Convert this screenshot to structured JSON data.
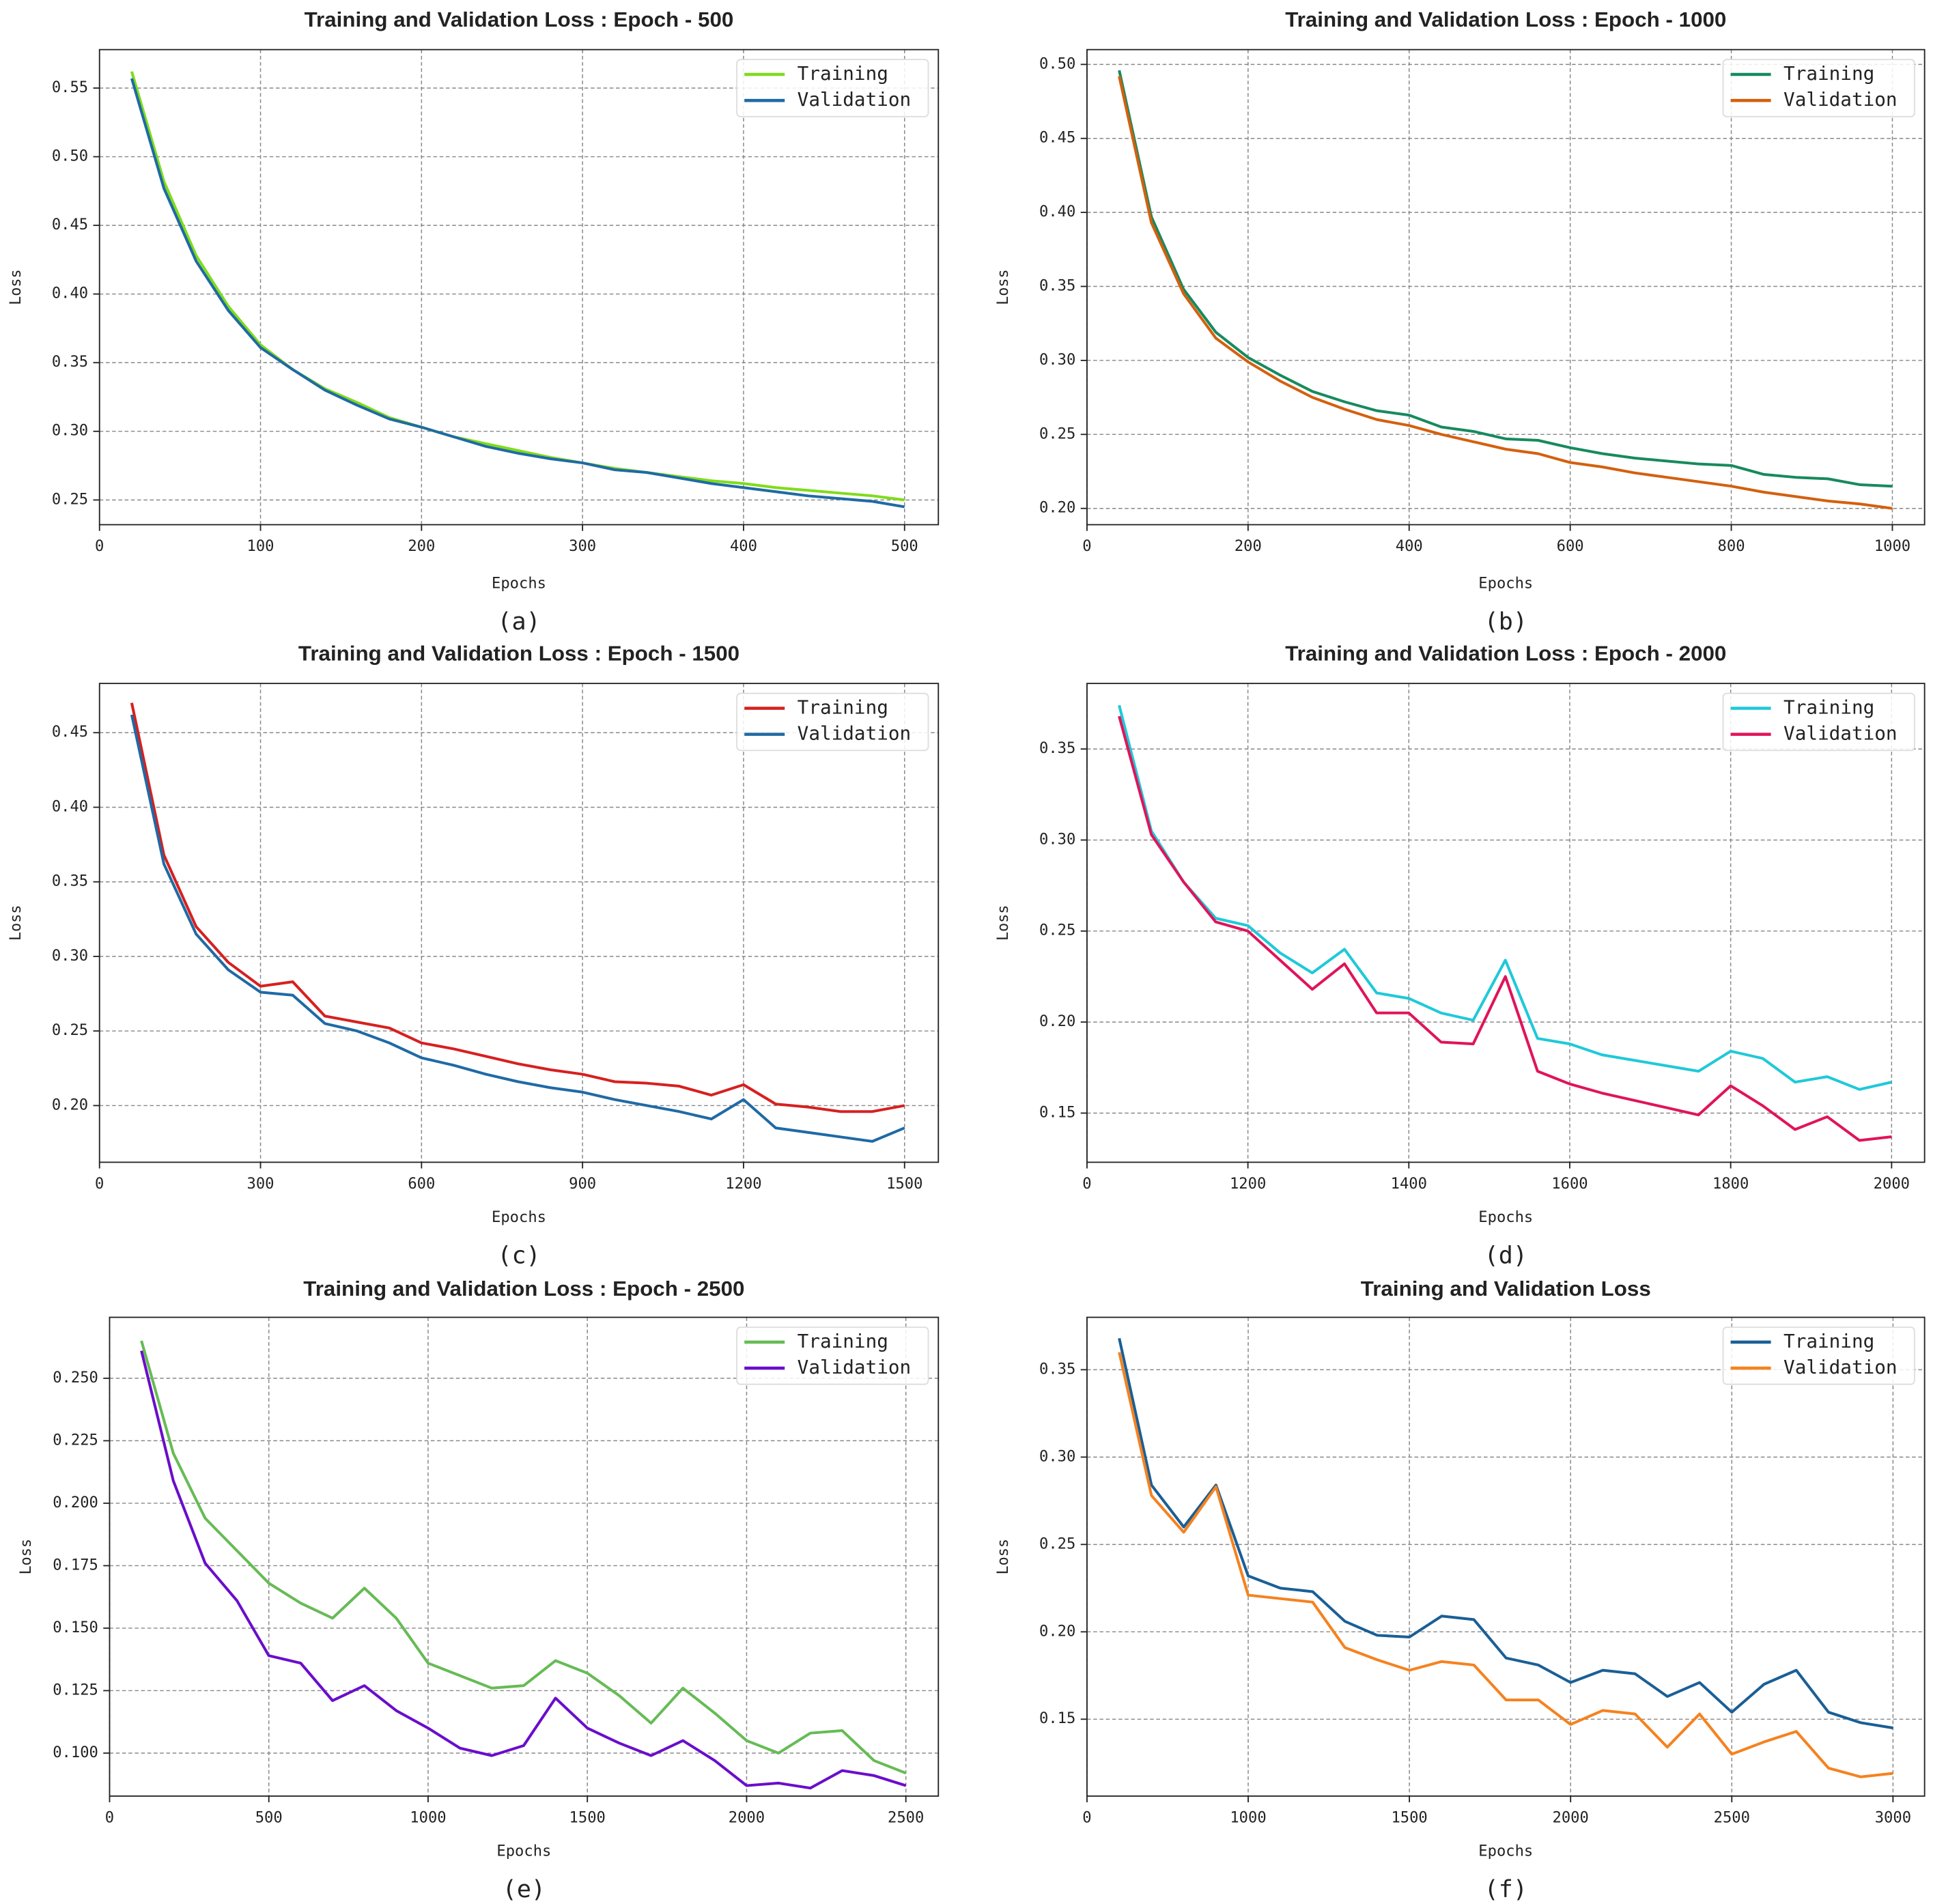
{
  "chart_data": [
    {
      "type": "line",
      "title": "Training and Validation Loss : Epoch - 500",
      "xlabel": "Epochs",
      "ylabel": "Loss",
      "caption": "(a)",
      "x": [
        20,
        40,
        60,
        80,
        100,
        120,
        140,
        160,
        180,
        200,
        220,
        240,
        260,
        280,
        300,
        320,
        340,
        360,
        380,
        400,
        420,
        440,
        460,
        480,
        500
      ],
      "series": [
        {
          "name": "Training",
          "color": "#7fdc1a",
          "values": [
            0.562,
            0.482,
            0.428,
            0.391,
            0.363,
            0.345,
            0.331,
            0.321,
            0.31,
            0.303,
            0.296,
            0.291,
            0.286,
            0.281,
            0.277,
            0.273,
            0.27,
            0.267,
            0.264,
            0.262,
            0.259,
            0.257,
            0.255,
            0.253,
            0.25
          ]
        },
        {
          "name": "Validation",
          "color": "#1f6aa5",
          "values": [
            0.557,
            0.477,
            0.424,
            0.388,
            0.361,
            0.345,
            0.33,
            0.319,
            0.309,
            0.303,
            0.296,
            0.289,
            0.284,
            0.28,
            0.277,
            0.272,
            0.27,
            0.266,
            0.262,
            0.259,
            0.256,
            0.253,
            0.251,
            0.249,
            0.245
          ]
        }
      ],
      "xlim": [
        0,
        521
      ],
      "ylim": [
        0.232,
        0.578
      ],
      "xticks": [
        0,
        100,
        200,
        300,
        400,
        500
      ],
      "yticks": [
        0.25,
        {
          "value": 0.3,
          "label": "0.30"
        },
        0.35,
        {
          "value": 0.4,
          "label": "0.40"
        },
        0.45,
        {
          "value": 0.5,
          "label": "0.50"
        },
        0.55
      ],
      "grid": true,
      "legend": "upper right"
    },
    {
      "type": "line",
      "title": "Training and Validation Loss : Epoch - 1000",
      "xlabel": "Epochs",
      "ylabel": "Loss",
      "caption": "(b)",
      "x": [
        40,
        80,
        120,
        160,
        200,
        240,
        280,
        320,
        360,
        400,
        440,
        480,
        520,
        560,
        600,
        640,
        680,
        720,
        760,
        800,
        840,
        880,
        920,
        960,
        1000
      ],
      "series": [
        {
          "name": "Training",
          "color": "#178a5e",
          "values": [
            0.496,
            0.397,
            0.348,
            0.319,
            0.302,
            0.29,
            0.279,
            0.272,
            0.266,
            0.263,
            0.255,
            0.252,
            0.247,
            0.246,
            0.241,
            0.237,
            0.234,
            0.232,
            0.23,
            0.229,
            0.223,
            0.221,
            0.22,
            0.216,
            0.215
          ]
        },
        {
          "name": "Validation",
          "color": "#d4600e",
          "values": [
            0.492,
            0.393,
            0.345,
            0.315,
            0.299,
            0.286,
            0.275,
            0.267,
            0.26,
            0.256,
            0.25,
            0.245,
            0.24,
            0.237,
            0.231,
            0.228,
            0.224,
            0.221,
            0.218,
            0.215,
            0.211,
            0.208,
            0.205,
            0.203,
            0.2
          ]
        }
      ],
      "xlim": [
        0,
        1040
      ],
      "ylim": [
        0.189,
        0.51
      ],
      "xticks": [
        0,
        200,
        400,
        600,
        800,
        1000
      ],
      "yticks": [
        {
          "value": 0.2,
          "label": "0.20"
        },
        0.25,
        {
          "value": 0.3,
          "label": "0.30"
        },
        0.35,
        {
          "value": 0.4,
          "label": "0.40"
        },
        0.45,
        {
          "value": 0.5,
          "label": "0.50"
        }
      ],
      "grid": true,
      "legend": "upper right"
    },
    {
      "type": "line",
      "title": "Training and Validation Loss : Epoch - 1500",
      "xlabel": "Epochs",
      "ylabel": "Loss",
      "caption": "(c)",
      "x": [
        60,
        120,
        180,
        240,
        300,
        360,
        420,
        480,
        540,
        600,
        660,
        720,
        780,
        840,
        900,
        960,
        1020,
        1080,
        1140,
        1200,
        1260,
        1320,
        1380,
        1440,
        1500
      ],
      "series": [
        {
          "name": "Training",
          "color": "#d62020",
          "values": [
            0.47,
            0.368,
            0.32,
            0.296,
            0.28,
            0.283,
            0.26,
            0.256,
            0.252,
            0.242,
            0.238,
            0.233,
            0.228,
            0.224,
            0.221,
            0.216,
            0.215,
            0.213,
            0.207,
            0.214,
            0.201,
            0.199,
            0.196,
            0.196,
            0.2
          ]
        },
        {
          "name": "Validation",
          "color": "#1f6aa5",
          "values": [
            0.462,
            0.362,
            0.315,
            0.291,
            0.276,
            0.274,
            0.255,
            0.25,
            0.242,
            0.232,
            0.227,
            0.221,
            0.216,
            0.212,
            0.209,
            0.204,
            0.2,
            0.196,
            0.191,
            0.204,
            0.185,
            0.182,
            0.179,
            0.176,
            0.185
          ]
        }
      ],
      "xlim": [
        0,
        1563
      ],
      "ylim": [
        0.162,
        0.483
      ],
      "xticks": [
        0,
        300,
        600,
        900,
        1200,
        1500
      ],
      "yticks": [
        {
          "value": 0.2,
          "label": "0.20"
        },
        0.25,
        {
          "value": 0.3,
          "label": "0.30"
        },
        0.35,
        {
          "value": 0.4,
          "label": "0.40"
        },
        0.45
      ],
      "grid": true,
      "legend": "upper right"
    },
    {
      "type": "line",
      "title": "Training and Validation Loss : Epoch - 2000",
      "xlabel": "Epochs",
      "ylabel": "Loss",
      "caption": "(d)",
      "x": [
        1040,
        1080,
        1120,
        1160,
        1200,
        1240,
        1280,
        1320,
        1360,
        1400,
        1440,
        1480,
        1520,
        1560,
        1600,
        1640,
        1680,
        1720,
        1760,
        1800,
        1840,
        1880,
        1920,
        1960,
        2000
      ],
      "series": [
        {
          "name": "Training",
          "color": "#1fc9d9",
          "values": [
            0.374,
            0.305,
            0.277,
            0.257,
            0.253,
            0.238,
            0.227,
            0.24,
            0.216,
            0.213,
            0.205,
            0.201,
            0.234,
            0.191,
            0.188,
            0.182,
            0.179,
            0.176,
            0.173,
            0.184,
            0.18,
            0.167,
            0.17,
            0.163,
            0.167
          ]
        },
        {
          "name": "Validation",
          "color": "#e0145a",
          "values": [
            0.368,
            0.303,
            0.277,
            0.255,
            0.25,
            0.234,
            0.218,
            0.232,
            0.205,
            0.205,
            0.189,
            0.188,
            0.225,
            0.173,
            0.166,
            0.161,
            0.157,
            0.153,
            0.149,
            0.165,
            0.154,
            0.141,
            0.148,
            0.135,
            0.137
          ]
        }
      ],
      "xlim": [
        1000,
        2041
      ],
      "ylim": [
        0.123,
        0.386
      ],
      "xticks": [
        {
          "value": 1000,
          "label": "0"
        },
        1200,
        1400,
        1600,
        1800,
        2000
      ],
      "yticks": [
        0.15,
        {
          "value": 0.2,
          "label": "0.20"
        },
        0.25,
        {
          "value": 0.3,
          "label": "0.30"
        },
        0.35
      ],
      "grid": true,
      "legend": "upper right"
    },
    {
      "type": "line",
      "title": "Training and Validation Loss : Epoch - 2500",
      "xlabel": "Epochs",
      "ylabel": "Loss",
      "caption": "(e)",
      "x": [
        100,
        200,
        300,
        400,
        500,
        600,
        700,
        800,
        900,
        1000,
        1100,
        1200,
        1300,
        1400,
        1500,
        1600,
        1700,
        1800,
        1900,
        2000,
        2100,
        2200,
        2300,
        2400,
        2500
      ],
      "series": [
        {
          "name": "Training",
          "color": "#66bb55",
          "values": [
            0.265,
            0.22,
            0.194,
            0.181,
            0.168,
            0.16,
            0.154,
            0.166,
            0.154,
            0.136,
            0.131,
            0.126,
            0.127,
            0.137,
            0.132,
            0.123,
            0.112,
            0.126,
            0.116,
            0.105,
            0.1,
            0.108,
            0.109,
            0.097,
            0.092
          ]
        },
        {
          "name": "Validation",
          "color": "#6a0dcc",
          "values": [
            0.261,
            0.209,
            0.176,
            0.161,
            0.139,
            0.136,
            0.121,
            0.127,
            0.117,
            0.11,
            0.102,
            0.099,
            0.103,
            0.122,
            0.11,
            0.104,
            0.099,
            0.105,
            0.097,
            0.087,
            0.088,
            0.086,
            0.093,
            0.091,
            0.087
          ]
        }
      ],
      "xlim": [
        0,
        2602
      ],
      "ylim": [
        0.0828,
        0.2744
      ],
      "xticks": [
        0,
        500,
        1000,
        1500,
        2000,
        2500
      ],
      "yticks": [
        {
          "value": 0.1,
          "label": "0.100"
        },
        0.125,
        {
          "value": 0.15,
          "label": "0.150"
        },
        0.175,
        {
          "value": 0.2,
          "label": "0.200"
        },
        0.225,
        {
          "value": 0.25,
          "label": "0.250"
        }
      ],
      "grid": true,
      "legend": "upper right"
    },
    {
      "type": "line",
      "title": "Training and Validation Loss",
      "xlabel": "Epochs",
      "ylabel": "Loss",
      "caption": "(f)",
      "x": [
        600,
        700,
        800,
        900,
        1000,
        1100,
        1200,
        1300,
        1400,
        1500,
        1600,
        1700,
        1800,
        1900,
        2000,
        2100,
        2200,
        2300,
        2400,
        2500,
        2600,
        2700,
        2800,
        2900,
        3000
      ],
      "series": [
        {
          "name": "Training",
          "color": "#1a5f96",
          "values": [
            0.368,
            0.284,
            0.26,
            0.284,
            0.232,
            0.225,
            0.223,
            0.206,
            0.198,
            0.197,
            0.209,
            0.207,
            0.185,
            0.181,
            0.171,
            0.178,
            0.176,
            0.163,
            0.171,
            0.154,
            0.17,
            0.178,
            0.154,
            0.148,
            0.145
          ]
        },
        {
          "name": "Validation",
          "color": "#f5821f",
          "values": [
            0.36,
            0.278,
            0.257,
            0.283,
            0.221,
            0.219,
            0.217,
            0.191,
            0.184,
            0.178,
            0.183,
            0.181,
            0.161,
            0.161,
            0.147,
            0.155,
            0.153,
            0.134,
            0.153,
            0.13,
            0.137,
            0.143,
            0.122,
            0.117,
            0.119
          ]
        }
      ],
      "xlim": [
        500,
        3098
      ],
      "ylim": [
        0.106,
        0.38
      ],
      "xticks": [
        {
          "value": 500,
          "label": "0"
        },
        1000,
        1500,
        2000,
        2500,
        3000
      ],
      "yticks": [
        0.15,
        {
          "value": 0.2,
          "label": "0.20"
        },
        0.25,
        {
          "value": 0.3,
          "label": "0.30"
        },
        0.35
      ],
      "grid": true,
      "legend": "upper right"
    }
  ]
}
